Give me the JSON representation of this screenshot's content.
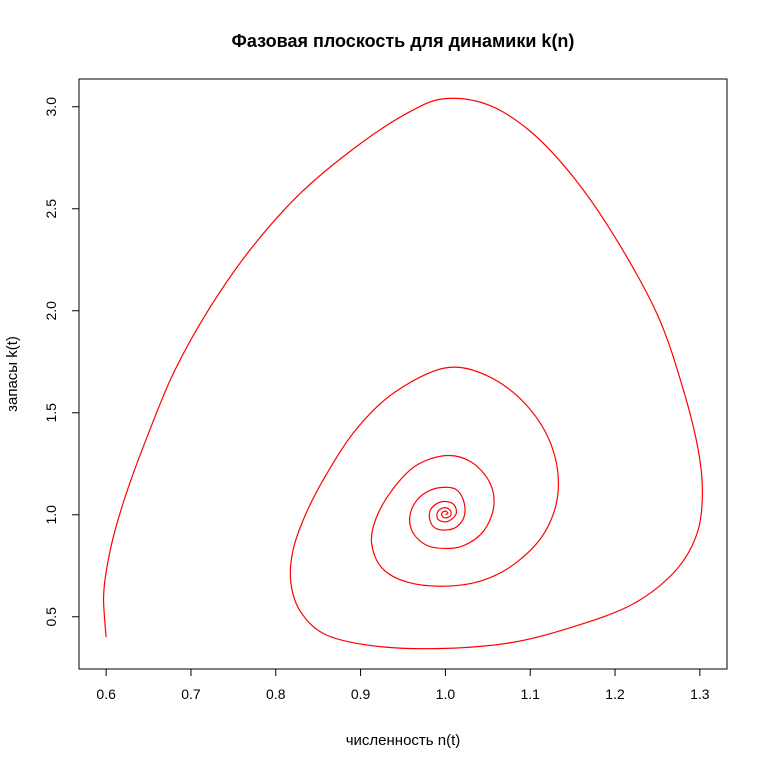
{
  "chart_data": {
    "type": "line",
    "title": "Фазовая плоскость для динамики k(n)",
    "xlabel": "численность n(t)",
    "ylabel": "запасы k(t)",
    "xlim": [
      0.568,
      1.332
    ],
    "ylim": [
      0.244,
      3.136
    ],
    "xticks": [
      0.6,
      0.7,
      0.8,
      0.9,
      1.0,
      1.1,
      1.2,
      1.3
    ],
    "xtick_labels": [
      "0.6",
      "0.7",
      "0.8",
      "0.9",
      "1.0",
      "1.1",
      "1.2",
      "1.3"
    ],
    "yticks": [
      0.5,
      1.0,
      1.5,
      2.0,
      2.5,
      3.0
    ],
    "ytick_labels": [
      "0.5",
      "1.0",
      "1.5",
      "2.0",
      "2.5",
      "3.0"
    ],
    "grid": false,
    "legend": "none",
    "series": [
      {
        "color": "#ff0000",
        "points": [
          [
            0.6,
            0.4
          ],
          [
            0.598,
            0.5
          ],
          [
            0.597,
            0.6
          ],
          [
            0.6,
            0.72
          ],
          [
            0.609,
            0.9
          ],
          [
            0.625,
            1.12
          ],
          [
            0.65,
            1.4
          ],
          [
            0.68,
            1.7
          ],
          [
            0.72,
            2.0
          ],
          [
            0.77,
            2.3
          ],
          [
            0.83,
            2.58
          ],
          [
            0.9,
            2.82
          ],
          [
            0.96,
            2.98
          ],
          [
            1.0,
            3.04
          ],
          [
            1.05,
            3.01
          ],
          [
            1.1,
            2.88
          ],
          [
            1.15,
            2.66
          ],
          [
            1.2,
            2.36
          ],
          [
            1.25,
            1.98
          ],
          [
            1.28,
            1.62
          ],
          [
            1.298,
            1.32
          ],
          [
            1.303,
            1.1
          ],
          [
            1.296,
            0.9
          ],
          [
            1.27,
            0.72
          ],
          [
            1.22,
            0.56
          ],
          [
            1.15,
            0.45
          ],
          [
            1.08,
            0.375
          ],
          [
            1.0,
            0.345
          ],
          [
            0.92,
            0.355
          ],
          [
            0.86,
            0.41
          ],
          [
            0.83,
            0.52
          ],
          [
            0.818,
            0.66
          ],
          [
            0.82,
            0.82
          ],
          [
            0.835,
            1.0
          ],
          [
            0.86,
            1.2
          ],
          [
            0.895,
            1.42
          ],
          [
            0.94,
            1.6
          ],
          [
            1.0,
            1.72
          ],
          [
            1.05,
            1.68
          ],
          [
            1.095,
            1.54
          ],
          [
            1.125,
            1.34
          ],
          [
            1.133,
            1.12
          ],
          [
            1.118,
            0.92
          ],
          [
            1.085,
            0.77
          ],
          [
            1.045,
            0.68
          ],
          [
            1.0,
            0.65
          ],
          [
            0.955,
            0.67
          ],
          [
            0.925,
            0.74
          ],
          [
            0.913,
            0.86
          ],
          [
            0.918,
            0.98
          ],
          [
            0.937,
            1.12
          ],
          [
            0.965,
            1.24
          ],
          [
            1.0,
            1.29
          ],
          [
            1.03,
            1.26
          ],
          [
            1.052,
            1.16
          ],
          [
            1.057,
            1.04
          ],
          [
            1.045,
            0.92
          ],
          [
            1.022,
            0.85
          ],
          [
            1.0,
            0.835
          ],
          [
            0.978,
            0.85
          ],
          [
            0.962,
            0.91
          ],
          [
            0.958,
            0.99
          ],
          [
            0.966,
            1.07
          ],
          [
            0.982,
            1.12
          ],
          [
            1.0,
            1.135
          ],
          [
            1.014,
            1.12
          ],
          [
            1.022,
            1.06
          ],
          [
            1.022,
            0.99
          ],
          [
            1.013,
            0.94
          ],
          [
            1.0,
            0.925
          ],
          [
            0.988,
            0.935
          ],
          [
            0.982,
            0.97
          ],
          [
            0.982,
            1.02
          ],
          [
            0.99,
            1.055
          ],
          [
            1.0,
            1.065
          ],
          [
            1.01,
            1.05
          ],
          [
            1.013,
            1.01
          ],
          [
            1.008,
            0.98
          ],
          [
            1.0,
            0.965
          ],
          [
            0.992,
            0.975
          ],
          [
            0.99,
            1.0
          ],
          [
            0.993,
            1.025
          ],
          [
            1.0,
            1.035
          ],
          [
            1.006,
            1.02
          ],
          [
            1.006,
            0.995
          ],
          [
            1.0,
            0.985
          ],
          [
            0.996,
            0.995
          ],
          [
            0.996,
            1.01
          ],
          [
            1.0,
            1.018
          ],
          [
            1.003,
            1.008
          ],
          [
            1.0,
            1.0
          ]
        ]
      }
    ]
  }
}
